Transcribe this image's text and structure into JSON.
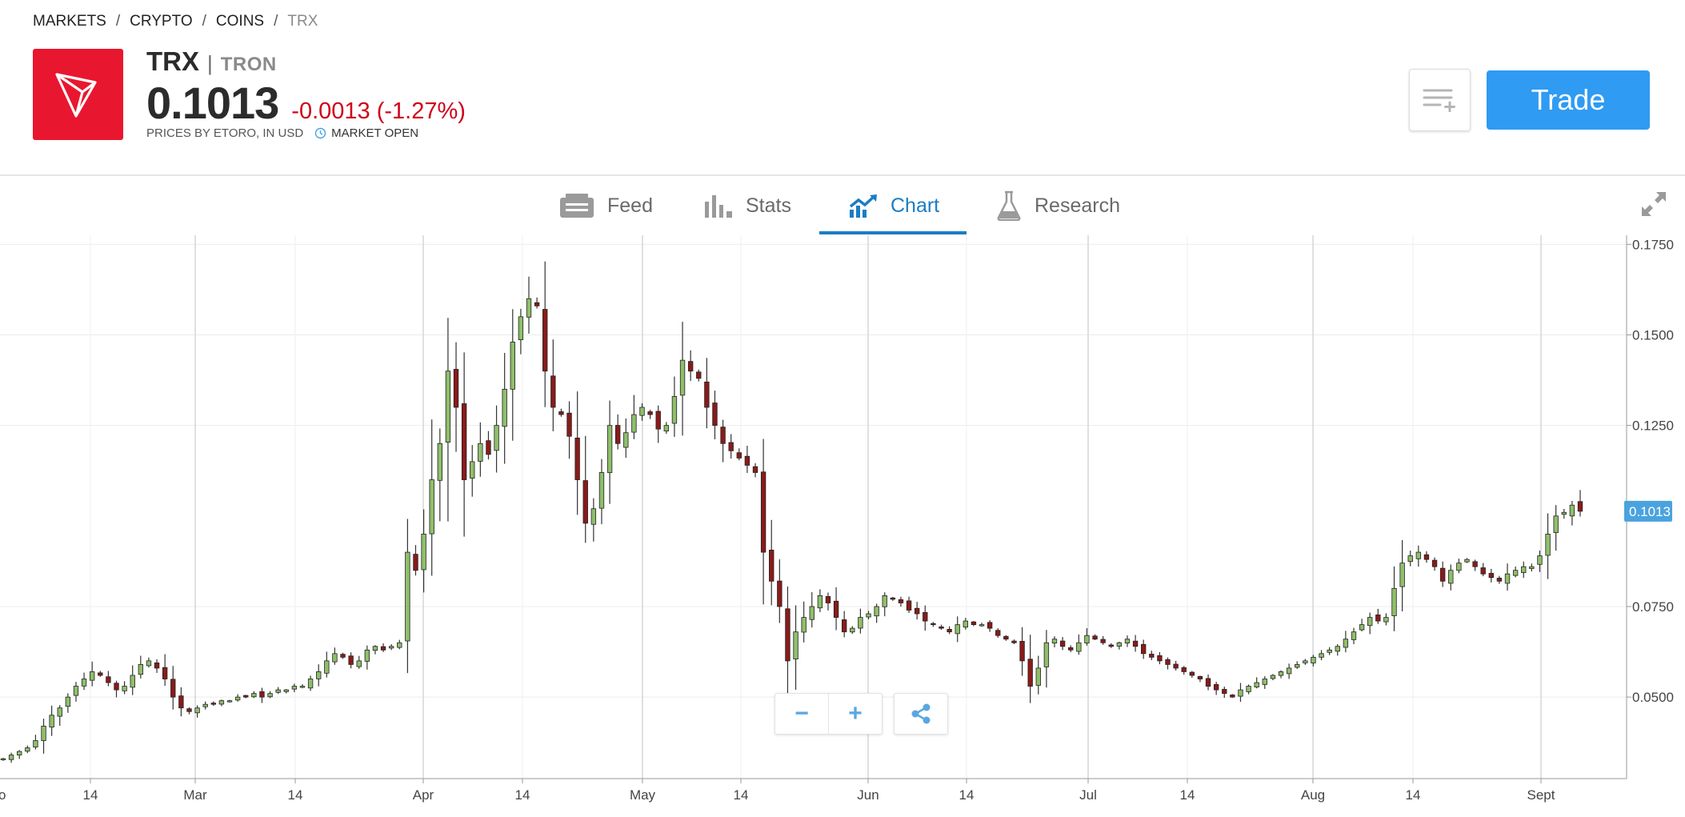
{
  "breadcrumb": [
    "MARKETS",
    "CRYPTO",
    "COINS",
    "TRX"
  ],
  "instrument": {
    "ticker": "TRX",
    "separator": "|",
    "name": "TRON",
    "price": "0.1013",
    "change": "-0.0013 (-1.27%)",
    "prices_by": "PRICES BY ETORO, IN USD",
    "market_status": "MARKET OPEN",
    "logo_icon": "tron-logo-icon",
    "logo_color": "#e9162f"
  },
  "actions": {
    "watchlist_icon": "add-to-watchlist-icon",
    "trade_label": "Trade",
    "trade_color": "#2f9bf2"
  },
  "tabs": [
    {
      "label": "Feed",
      "icon": "feed-icon",
      "active": false
    },
    {
      "label": "Stats",
      "icon": "stats-icon",
      "active": false
    },
    {
      "label": "Chart",
      "icon": "chart-icon",
      "active": true
    },
    {
      "label": "Research",
      "icon": "flask-icon",
      "active": false
    }
  ],
  "chart_controls": {
    "zoom_out": "−",
    "zoom_in": "+",
    "share_icon": "share-icon"
  },
  "chart_data": {
    "type": "candlestick",
    "up_color": "#8fbf6a",
    "down_color": "#8b1a1a",
    "last_price_label": "0.1013",
    "y_ticks": [
      "0.1750",
      "0.1500",
      "0.1250",
      "0.0750",
      "0.0500"
    ],
    "ylim": [
      0.0275,
      0.1775
    ],
    "x_tick_labels": [
      "14",
      "Mar",
      "14",
      "Apr",
      "14",
      "May",
      "14",
      "Jun",
      "14",
      "Jul",
      "14",
      "Aug",
      "14",
      "Sept"
    ],
    "x_start_label": "o",
    "grid": true,
    "closes_approx": [
      0.033,
      0.034,
      0.035,
      0.036,
      0.038,
      0.042,
      0.045,
      0.047,
      0.05,
      0.053,
      0.055,
      0.057,
      0.056,
      0.054,
      0.052,
      0.053,
      0.056,
      0.059,
      0.06,
      0.058,
      0.055,
      0.05,
      0.047,
      0.046,
      0.047,
      0.048,
      0.048,
      0.049,
      0.049,
      0.05,
      0.05,
      0.051,
      0.05,
      0.051,
      0.052,
      0.052,
      0.053,
      0.053,
      0.055,
      0.057,
      0.06,
      0.062,
      0.061,
      0.059,
      0.06,
      0.063,
      0.064,
      0.063,
      0.064,
      0.065,
      0.09,
      0.085,
      0.095,
      0.11,
      0.12,
      0.14,
      0.13,
      0.11,
      0.115,
      0.12,
      0.117,
      0.125,
      0.135,
      0.148,
      0.155,
      0.16,
      0.158,
      0.14,
      0.13,
      0.128,
      0.122,
      0.11,
      0.098,
      0.102,
      0.112,
      0.125,
      0.12,
      0.123,
      0.128,
      0.13,
      0.128,
      0.124,
      0.125,
      0.133,
      0.143,
      0.14,
      0.138,
      0.13,
      0.125,
      0.12,
      0.118,
      0.116,
      0.114,
      0.112,
      0.09,
      0.082,
      0.075,
      0.06,
      0.068,
      0.072,
      0.075,
      0.078,
      0.076,
      0.072,
      0.068,
      0.069,
      0.072,
      0.073,
      0.075,
      0.078,
      0.077,
      0.076,
      0.074,
      0.073,
      0.071,
      0.07,
      0.069,
      0.068,
      0.07,
      0.071,
      0.07,
      0.07,
      0.069,
      0.067,
      0.066,
      0.065,
      0.06,
      0.053,
      0.058,
      0.065,
      0.066,
      0.064,
      0.063,
      0.065,
      0.067,
      0.066,
      0.065,
      0.064,
      0.065,
      0.066,
      0.064,
      0.062,
      0.061,
      0.06,
      0.059,
      0.058,
      0.057,
      0.056,
      0.055,
      0.053,
      0.052,
      0.051,
      0.05,
      0.052,
      0.053,
      0.054,
      0.055,
      0.056,
      0.057,
      0.058,
      0.059,
      0.06,
      0.061,
      0.062,
      0.063,
      0.064,
      0.066,
      0.068,
      0.07,
      0.072,
      0.071,
      0.072,
      0.08,
      0.087,
      0.089,
      0.09,
      0.088,
      0.086,
      0.082,
      0.085,
      0.087,
      0.088,
      0.086,
      0.084,
      0.083,
      0.082,
      0.084,
      0.085,
      0.086,
      0.086,
      0.089,
      0.095,
      0.1,
      0.101,
      0.103,
      0.1013
    ]
  }
}
